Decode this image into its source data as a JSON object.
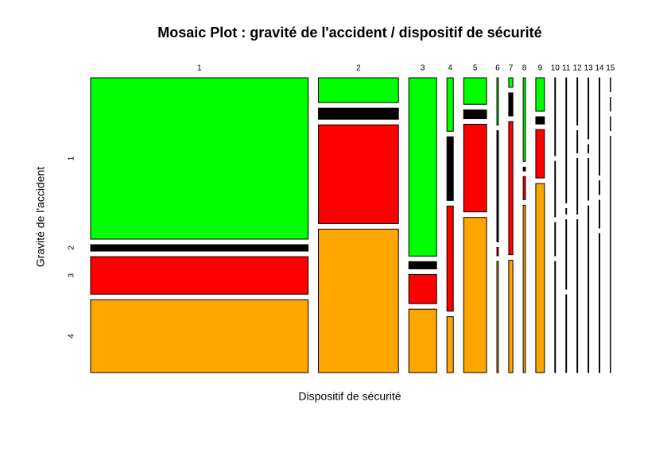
{
  "chart_data": {
    "type": "mosaic",
    "title": "Mosaic Plot : gravité de l'accident / dispositif de sécurité",
    "xlabel": "Dispositif de sécurité",
    "ylabel": "Gravité de l'accident",
    "categories": [
      "1",
      "2",
      "3",
      "4",
      "5",
      "6",
      "7",
      "8",
      "9",
      "10",
      "11",
      "12",
      "13",
      "14",
      "15"
    ],
    "column_share": [
      57.9,
      21.3,
      7.4,
      1.7,
      6.1,
      0.4,
      1.1,
      0.6,
      2.3,
      0.2,
      0.2,
      0.2,
      0.2,
      0.2,
      0.1
    ],
    "series": [
      {
        "name": "1",
        "color": "#00ff00",
        "values": [
          58.0,
          8.9,
          64.1,
          19.2,
          9.5,
          17,
          3.4,
          30.1,
          12.0,
          28,
          45,
          17,
          22,
          35,
          5
        ]
      },
      {
        "name": "2",
        "color": "#000000",
        "values": [
          2.3,
          4.0,
          2.6,
          22.9,
          3.2,
          40,
          8.3,
          1.4,
          2.6,
          20,
          2,
          8,
          3,
          5,
          5
        ]
      },
      {
        "name": "3",
        "color": "#ff0000",
        "values": [
          13.5,
          35.5,
          10.5,
          37.8,
          31.5,
          3,
          47.9,
          8.3,
          17.4,
          12,
          25,
          20,
          15,
          10,
          5
        ]
      },
      {
        "name": "4",
        "color": "#ffa500",
        "values": [
          26.2,
          51.6,
          22.8,
          20.1,
          55.8,
          40,
          40.4,
          60.2,
          68.0,
          40,
          28,
          55,
          60,
          50,
          85
        ]
      }
    ]
  }
}
